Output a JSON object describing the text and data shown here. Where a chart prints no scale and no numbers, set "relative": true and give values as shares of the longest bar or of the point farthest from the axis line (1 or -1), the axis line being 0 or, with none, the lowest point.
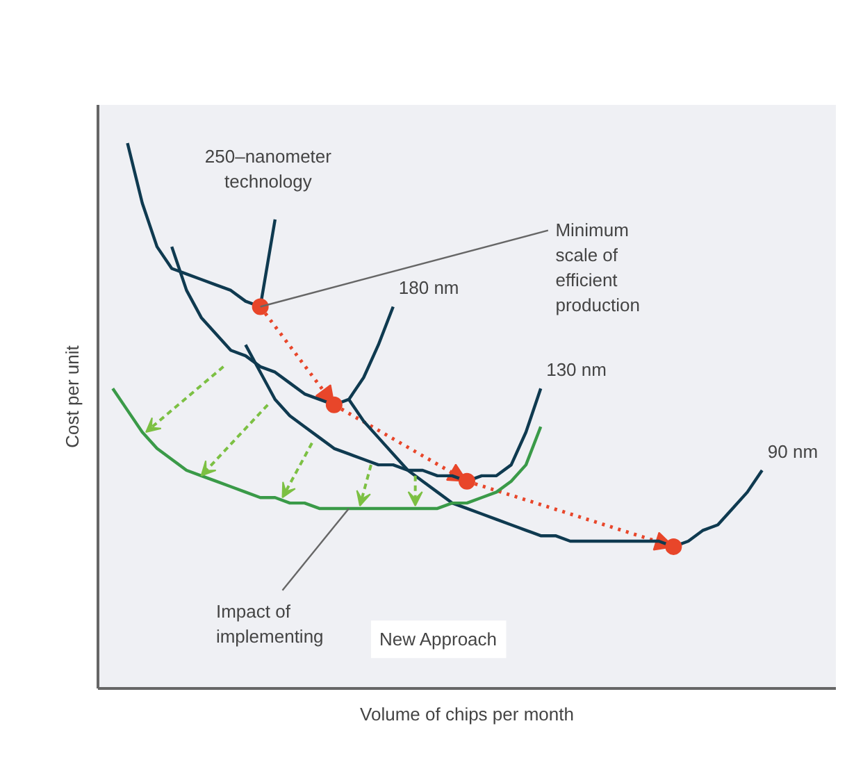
{
  "chart_data": {
    "type": "line",
    "relative": true,
    "xlabel": "Volume of chips per month",
    "ylabel": "Cost per unit",
    "grid": false,
    "marker": "none",
    "line_style": "solid",
    "categories": [
      null,
      null,
      null,
      null,
      null,
      null,
      null,
      null,
      null,
      null,
      null,
      null,
      null,
      null,
      null,
      null,
      null,
      null,
      null,
      null,
      null,
      null,
      null,
      null,
      null,
      null,
      null,
      null,
      null,
      null,
      null,
      null,
      null,
      null,
      null,
      null,
      null,
      null,
      null,
      null,
      null,
      null,
      null,
      null,
      null
    ],
    "series": [
      {
        "name": "250–nanometer technology",
        "color": "#0f3a50",
        "values": [
          null,
          1.0,
          0.89,
          0.81,
          0.77,
          0.76,
          0.75,
          0.74,
          0.73,
          0.71,
          0.7,
          0.86,
          null,
          null,
          null,
          null,
          null,
          null,
          null,
          null,
          null,
          null,
          null,
          null,
          null,
          null,
          null,
          null,
          null,
          null,
          null,
          null,
          null,
          null,
          null,
          null,
          null,
          null,
          null,
          null,
          null,
          null,
          null,
          null,
          null
        ]
      },
      {
        "name": "180 nm",
        "color": "#0f3a50",
        "values": [
          null,
          null,
          null,
          null,
          0.81,
          0.73,
          0.68,
          0.65,
          0.62,
          0.61,
          0.59,
          0.58,
          0.56,
          0.54,
          0.53,
          0.52,
          0.53,
          0.57,
          0.63,
          0.7,
          null,
          null,
          null,
          null,
          null,
          null,
          null,
          null,
          null,
          null,
          null,
          null,
          null,
          null,
          null,
          null,
          null,
          null,
          null,
          null,
          null,
          null,
          null,
          null,
          null
        ]
      },
      {
        "name": "130 nm",
        "color": "#0f3a50",
        "values": [
          null,
          null,
          null,
          null,
          null,
          null,
          null,
          null,
          null,
          0.63,
          0.58,
          0.53,
          0.5,
          0.48,
          0.46,
          0.44,
          0.43,
          0.42,
          0.41,
          0.41,
          0.4,
          0.4,
          0.39,
          0.39,
          0.38,
          0.39,
          0.39,
          0.41,
          0.47,
          0.55,
          null,
          null,
          null,
          null,
          null,
          null,
          null,
          null,
          null,
          null,
          null,
          null,
          null,
          null,
          null
        ]
      },
      {
        "name": "90 nm",
        "color": "#0f3a50",
        "values": [
          null,
          null,
          null,
          null,
          null,
          null,
          null,
          null,
          null,
          null,
          null,
          null,
          null,
          null,
          null,
          null,
          0.53,
          0.49,
          0.46,
          0.43,
          0.4,
          0.38,
          0.36,
          0.34,
          0.33,
          0.32,
          0.31,
          0.3,
          0.29,
          0.28,
          0.28,
          0.27,
          0.27,
          0.27,
          0.27,
          0.27,
          0.27,
          0.27,
          0.26,
          0.27,
          0.29,
          0.3,
          0.33,
          0.36,
          0.4
        ]
      },
      {
        "color": "#3a9a48",
        "values": [
          0.55,
          0.51,
          0.47,
          0.44,
          0.42,
          0.4,
          0.39,
          0.38,
          0.37,
          0.36,
          0.35,
          0.35,
          0.34,
          0.34,
          0.33,
          0.33,
          0.33,
          0.33,
          0.33,
          0.33,
          0.33,
          0.33,
          0.33,
          0.34,
          0.34,
          0.35,
          0.36,
          0.38,
          0.41,
          0.48,
          null,
          null,
          null,
          null,
          null,
          null,
          null,
          null,
          null,
          null,
          null,
          null,
          null,
          null,
          null
        ]
      }
    ],
    "annotations": [
      "Minimum scale of efficient production",
      "Impact of implementing",
      "New Approach"
    ]
  }
}
